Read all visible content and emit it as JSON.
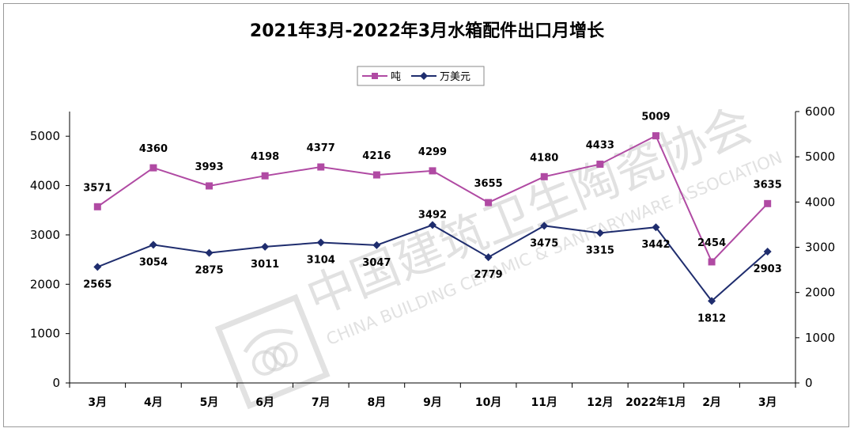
{
  "chart_data": {
    "type": "line",
    "title": "2021年3月-2022年3月水箱配件出口月增长",
    "categories": [
      "3月",
      "4月",
      "5月",
      "6月",
      "7月",
      "8月",
      "9月",
      "10月",
      "11月",
      "12月",
      "2022年1月",
      "2月",
      "3月"
    ],
    "series": [
      {
        "name": "吨",
        "axis": "left",
        "color": "#b04aa3",
        "marker": "square",
        "values": [
          3571,
          4360,
          3993,
          4198,
          4377,
          4216,
          4299,
          3655,
          4180,
          4433,
          5009,
          2454,
          3635
        ]
      },
      {
        "name": "万美元",
        "axis": "right",
        "color": "#1f2d6e",
        "marker": "diamond",
        "values": [
          2565,
          3054,
          2875,
          3011,
          3104,
          3047,
          3492,
          2779,
          3475,
          3315,
          3442,
          1812,
          2903
        ]
      }
    ],
    "y_left": {
      "min": 0,
      "max": 5500,
      "ticks": [
        0,
        1000,
        2000,
        3000,
        4000,
        5000
      ]
    },
    "y_right": {
      "min": 0,
      "max": 6000,
      "ticks": [
        0,
        1000,
        2000,
        3000,
        4000,
        5000,
        6000
      ]
    },
    "legend_position": "top-center",
    "grid": false
  },
  "watermark": {
    "text_cn": "中国建筑卫生陶瓷协会",
    "text_en": "CHINA BUILDING CERAMIC & SANITARYWARE ASSOCIATION"
  }
}
